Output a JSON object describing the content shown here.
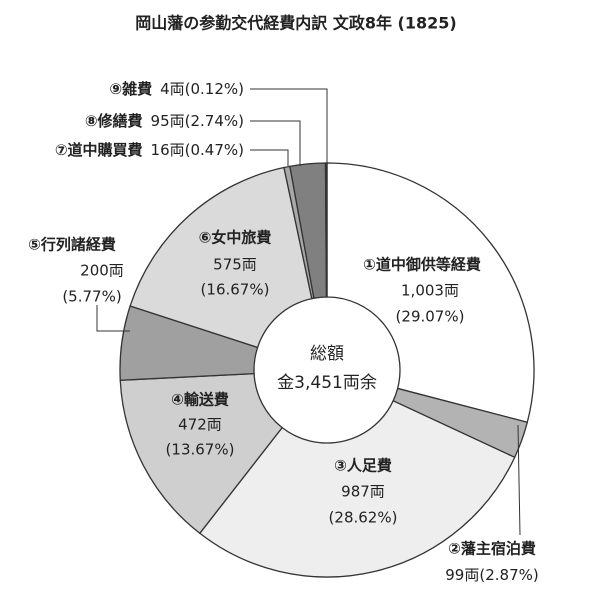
{
  "chart_data": {
    "type": "donut",
    "title": "岡山藩の参勤交代経費内訳 文政8年 (1825)",
    "center_title": "総額",
    "center_label": "金3,451両余",
    "series": [
      {
        "name": "①道中御供等経費",
        "value": 1003,
        "value_label": "1,003両",
        "percent": 29.07,
        "percent_label": "(29.07%)",
        "color": "#ffffff"
      },
      {
        "name": "②藩主宿泊費",
        "value": 99,
        "value_label": "99両",
        "percent": 2.87,
        "percent_label": "(2.87%)",
        "color": "#b3b3b3"
      },
      {
        "name": "③人足費",
        "value": 987,
        "value_label": "987両",
        "percent": 28.62,
        "percent_label": "(28.62%)",
        "color": "#eeeeee"
      },
      {
        "name": "④輸送費",
        "value": 472,
        "value_label": "472両",
        "percent": 13.67,
        "percent_label": "(13.67%)",
        "color": "#cfcfcf"
      },
      {
        "name": "⑤行列諸経費",
        "value": 200,
        "value_label": "200両",
        "percent": 5.77,
        "percent_label": "(5.77%)",
        "color": "#a0a0a0"
      },
      {
        "name": "⑥女中旅費",
        "value": 575,
        "value_label": "575両",
        "percent": 16.67,
        "percent_label": "(16.67%)",
        "color": "#dadada"
      },
      {
        "name": "⑦道中購買費",
        "value": 16,
        "value_label": "16両",
        "percent": 0.47,
        "percent_label": "(0.47%)",
        "color": "#a8a8a8"
      },
      {
        "name": "⑧修繕費",
        "value": 95,
        "value_label": "95両",
        "percent": 2.74,
        "percent_label": "(2.74%)",
        "color": "#808080"
      },
      {
        "name": "⑨雑費",
        "value": 4,
        "value_label": "4両",
        "percent": 0.12,
        "percent_label": "(0.12%)",
        "color": "#222222"
      }
    ]
  }
}
